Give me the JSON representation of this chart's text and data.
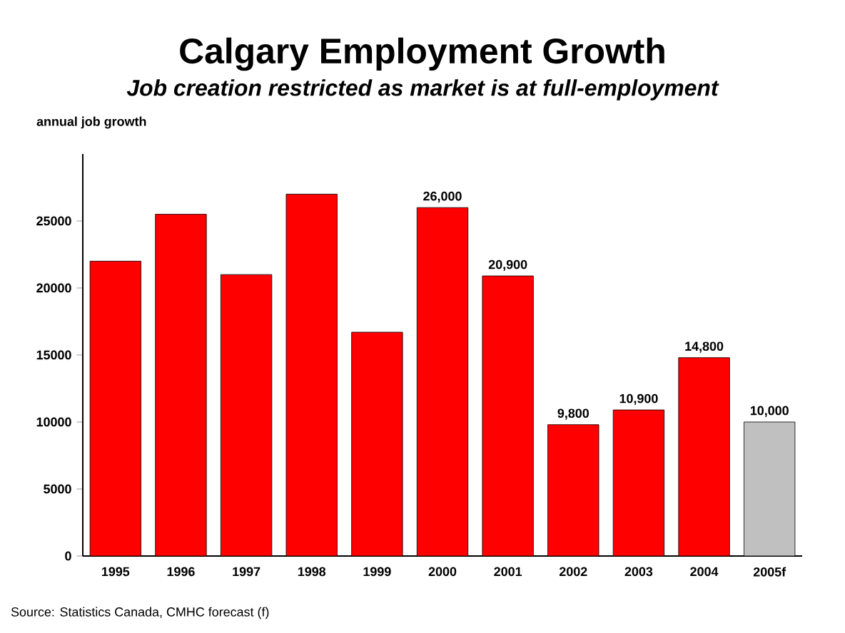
{
  "chart_data": {
    "type": "bar",
    "title": "Calgary Employment Growth",
    "subtitle": "Job creation restricted as market is at full-employment",
    "ylabel": "annual job growth",
    "annotations": [
      "Source: Statistics Canada, CMHC forecast (f)"
    ],
    "categories": [
      "1995",
      "1996",
      "1997",
      "1998",
      "1999",
      "2000",
      "2001",
      "2002",
      "2003",
      "2004",
      "2005f"
    ],
    "values": [
      22000,
      25500,
      21000,
      27000,
      16700,
      26000,
      20900,
      9800,
      10900,
      14800,
      10000
    ],
    "value_labels": [
      null,
      null,
      null,
      null,
      null,
      "26,000",
      "20,900",
      "9,800",
      "10,900",
      "14,800",
      "10,000"
    ],
    "colors": [
      "#ff0000",
      "#ff0000",
      "#ff0000",
      "#ff0000",
      "#ff0000",
      "#ff0000",
      "#ff0000",
      "#ff0000",
      "#ff0000",
      "#ff0000",
      "#c0c0c0"
    ],
    "ylim": [
      0,
      30000
    ],
    "yticks": [
      0,
      5000,
      10000,
      15000,
      20000,
      25000
    ]
  }
}
